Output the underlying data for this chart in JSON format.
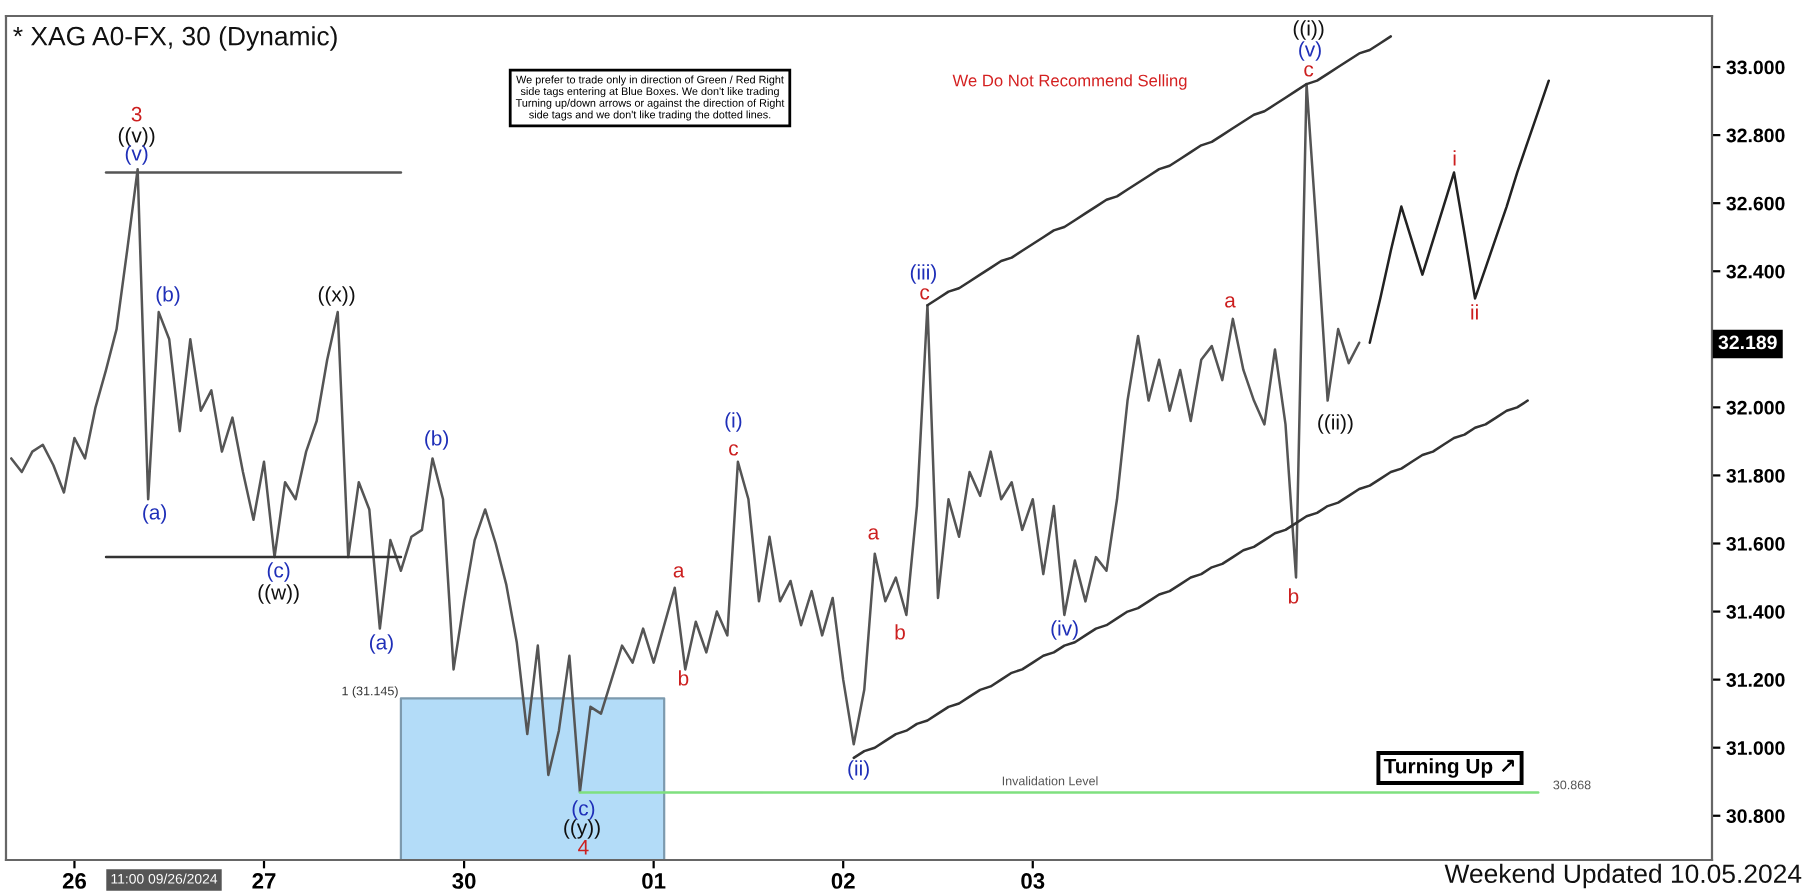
{
  "chart_data": {
    "type": "line",
    "title": "* XAG A0-FX, 30 (Dynamic)",
    "categories": [
      null,
      null,
      null,
      null,
      null,
      null,
      "26",
      null,
      null,
      null,
      null,
      null,
      null,
      null,
      null,
      null,
      null,
      null,
      null,
      null,
      null,
      null,
      null,
      null,
      "27",
      null,
      null,
      null,
      null,
      null,
      null,
      null,
      null,
      null,
      null,
      null,
      null,
      null,
      null,
      null,
      null,
      null,
      null,
      "30",
      null,
      null,
      null,
      null,
      null,
      null,
      null,
      null,
      null,
      null,
      null,
      null,
      null,
      null,
      null,
      null,
      null,
      "01",
      null,
      null,
      null,
      null,
      null,
      null,
      null,
      null,
      null,
      null,
      null,
      null,
      null,
      null,
      null,
      null,
      null,
      "02",
      null,
      null,
      null,
      null,
      null,
      null,
      null,
      null,
      null,
      null,
      null,
      null,
      null,
      null,
      null,
      null,
      null,
      "03",
      null,
      null,
      null,
      null,
      null,
      null,
      null,
      null,
      null,
      null,
      null,
      null,
      null,
      null,
      null,
      null,
      null,
      null,
      null,
      null,
      null,
      null,
      null,
      null,
      null,
      null,
      null,
      null,
      null,
      null,
      null,
      null,
      null,
      null,
      null,
      null,
      null,
      null,
      null,
      null,
      null,
      null,
      null,
      null,
      null,
      null,
      null,
      null,
      null,
      null,
      null,
      null,
      null,
      null,
      null,
      null,
      null,
      null,
      null,
      null,
      null,
      null,
      null,
      null
    ],
    "ylim": [
      30.67,
      33.15
    ],
    "yticks": [
      {
        "value": 30.8,
        "label": "30.800"
      },
      {
        "value": 31.0,
        "label": "31.000"
      },
      {
        "value": 31.2,
        "label": "31.200"
      },
      {
        "value": 31.4,
        "label": "31.400"
      },
      {
        "value": 31.6,
        "label": "31.600"
      },
      {
        "value": 31.8,
        "label": "31.800"
      },
      {
        "value": 32.0,
        "label": "32.000"
      },
      {
        "value": 32.4,
        "label": "32.400"
      },
      {
        "value": 32.6,
        "label": "32.600"
      },
      {
        "value": 32.8,
        "label": "32.800"
      },
      {
        "value": 33.0,
        "label": "33.000"
      }
    ],
    "grid": false,
    "series": [
      {
        "type": "area",
        "color": "#b3dcf8",
        "values": [
          null,
          null,
          null,
          null,
          null,
          null,
          null,
          null,
          null,
          null,
          null,
          null,
          null,
          null,
          null,
          null,
          null,
          null,
          null,
          null,
          null,
          null,
          null,
          null,
          null,
          null,
          null,
          null,
          null,
          null,
          null,
          null,
          null,
          null,
          null,
          null,
          null,
          31.145,
          31.145,
          31.145,
          31.145,
          31.145,
          31.145,
          31.145,
          31.145,
          31.145,
          31.145,
          31.145,
          31.145,
          31.145,
          31.145,
          31.145,
          31.145,
          31.145,
          31.145,
          31.145,
          31.145,
          31.145,
          31.145,
          31.145,
          31.145,
          31.145,
          31.145,
          null,
          null,
          null,
          null,
          null,
          null,
          null,
          null,
          null,
          null,
          null,
          null,
          null,
          null,
          null,
          null,
          null,
          null,
          null,
          null,
          null,
          null,
          null,
          null,
          null,
          null,
          null,
          null,
          null,
          null,
          null,
          null,
          null,
          null,
          null,
          null,
          null,
          null,
          null,
          null,
          null,
          null,
          null,
          null,
          null,
          null,
          null,
          null,
          null,
          null,
          null,
          null,
          null,
          null,
          null,
          null,
          null,
          null,
          null,
          null,
          null,
          null,
          null,
          null,
          null,
          null,
          null,
          null,
          null,
          null,
          null,
          null,
          null,
          null,
          null,
          null,
          null,
          null,
          null,
          null,
          null,
          null,
          null,
          null,
          null,
          null,
          null,
          null,
          null,
          null,
          null,
          null,
          null,
          null,
          null,
          null,
          null,
          null,
          null
        ]
      },
      {
        "color": "#555555",
        "values": [
          31.85,
          31.81,
          31.87,
          31.89,
          31.83,
          31.75,
          31.91,
          31.85,
          32.0,
          32.11,
          32.23,
          32.46,
          32.7,
          31.73,
          32.28,
          32.2,
          31.93,
          32.2,
          31.99,
          32.05,
          31.87,
          31.97,
          31.81,
          31.67,
          31.84,
          31.56,
          31.78,
          31.73,
          31.87,
          31.96,
          32.14,
          32.28,
          31.56,
          31.78,
          31.7,
          31.35,
          31.61,
          31.52,
          31.62,
          31.64,
          31.85,
          31.73,
          31.23,
          31.43,
          31.61,
          31.7,
          31.6,
          31.48,
          31.31,
          31.04,
          31.3,
          30.92,
          31.05,
          31.27,
          30.87,
          31.12,
          31.1,
          31.2,
          31.3,
          31.25,
          31.35,
          31.25,
          31.36,
          31.47,
          31.23,
          31.37,
          31.28,
          31.4,
          31.33,
          31.84,
          31.73,
          31.43,
          31.62,
          31.43,
          31.49,
          31.36,
          31.46,
          31.33,
          31.44,
          31.2,
          31.01,
          31.17,
          31.57,
          31.43,
          31.5,
          31.39,
          31.71,
          32.3,
          31.44,
          31.73,
          31.62,
          31.81,
          31.74,
          31.87,
          31.73,
          31.78,
          31.64,
          31.73,
          31.51,
          31.71,
          31.39,
          31.55,
          31.43,
          31.56,
          31.52,
          31.73,
          32.02,
          32.21,
          32.02,
          32.14,
          31.99,
          32.11,
          31.96,
          32.14,
          32.18,
          32.08,
          32.26,
          32.11,
          32.02,
          31.95,
          32.17,
          31.95,
          31.5,
          32.95,
          32.5,
          32.02,
          32.23,
          32.13,
          32.19,
          null,
          null,
          null,
          null,
          null,
          null,
          null,
          null,
          null,
          null,
          null,
          null,
          null,
          null,
          null,
          null,
          null,
          null,
          null,
          null,
          null,
          null,
          null,
          null,
          null,
          null,
          null,
          null,
          null,
          null,
          null,
          null,
          null
        ]
      },
      {
        "color": "#222222",
        "values": [
          null,
          null,
          null,
          null,
          null,
          null,
          null,
          null,
          null,
          null,
          null,
          null,
          null,
          null,
          null,
          null,
          null,
          null,
          null,
          null,
          null,
          null,
          null,
          null,
          null,
          null,
          null,
          null,
          null,
          null,
          null,
          null,
          null,
          null,
          null,
          null,
          null,
          null,
          null,
          null,
          null,
          null,
          null,
          null,
          null,
          null,
          null,
          null,
          null,
          null,
          null,
          null,
          null,
          null,
          null,
          null,
          null,
          null,
          null,
          null,
          null,
          null,
          null,
          null,
          null,
          null,
          null,
          null,
          null,
          null,
          null,
          null,
          null,
          null,
          null,
          null,
          null,
          null,
          null,
          null,
          null,
          null,
          null,
          null,
          null,
          null,
          null,
          null,
          null,
          null,
          null,
          null,
          null,
          null,
          null,
          null,
          null,
          null,
          null,
          null,
          null,
          null,
          null,
          null,
          null,
          null,
          null,
          null,
          null,
          null,
          null,
          null,
          null,
          null,
          null,
          null,
          null,
          null,
          null,
          null,
          null,
          null,
          null,
          null,
          null,
          null,
          null,
          null,
          null,
          32.19,
          32.32,
          32.46,
          32.59,
          32.49,
          32.39,
          32.49,
          32.59,
          32.69,
          32.51,
          32.32,
          32.41,
          32.5,
          32.59,
          32.69,
          32.78,
          32.87,
          32.96,
          null,
          null,
          null,
          null,
          null,
          null,
          null,
          null,
          null,
          null,
          null,
          null,
          null,
          null,
          null
        ]
      },
      {
        "color": "#333333",
        "values": [
          null,
          null,
          null,
          null,
          null,
          null,
          null,
          null,
          null,
          null,
          null,
          null,
          null,
          null,
          null,
          null,
          null,
          null,
          null,
          null,
          null,
          null,
          null,
          null,
          null,
          null,
          null,
          null,
          null,
          null,
          null,
          null,
          null,
          null,
          null,
          null,
          null,
          null,
          null,
          null,
          null,
          null,
          null,
          null,
          null,
          null,
          null,
          null,
          null,
          null,
          null,
          null,
          null,
          null,
          null,
          null,
          null,
          null,
          null,
          null,
          null,
          null,
          null,
          null,
          null,
          null,
          null,
          null,
          null,
          null,
          null,
          null,
          null,
          null,
          null,
          null,
          null,
          null,
          null,
          null,
          null,
          null,
          null,
          null,
          null,
          null,
          null,
          32.3,
          32.32,
          32.34,
          32.35,
          32.37,
          32.39,
          32.41,
          32.43,
          32.44,
          32.46,
          32.48,
          32.5,
          32.52,
          32.53,
          32.55,
          32.57,
          32.59,
          32.61,
          32.62,
          32.64,
          32.66,
          32.68,
          32.7,
          32.71,
          32.73,
          32.75,
          32.77,
          32.78,
          32.8,
          32.82,
          32.84,
          32.86,
          32.87,
          32.89,
          32.91,
          32.93,
          32.95,
          32.96,
          32.98,
          33.0,
          33.02,
          33.04,
          33.05,
          33.07,
          33.09,
          null,
          null,
          null,
          null,
          null,
          null,
          null,
          null,
          null,
          null,
          null,
          null,
          null,
          null,
          null,
          null,
          null,
          null,
          null,
          null,
          null,
          null,
          null,
          null,
          null,
          null,
          null,
          null,
          null,
          null
        ]
      },
      {
        "color": "#333333",
        "values": [
          null,
          null,
          null,
          null,
          null,
          null,
          null,
          null,
          null,
          null,
          null,
          null,
          null,
          null,
          null,
          null,
          null,
          null,
          null,
          null,
          null,
          null,
          null,
          null,
          null,
          null,
          null,
          null,
          null,
          null,
          null,
          null,
          null,
          null,
          null,
          null,
          null,
          null,
          null,
          null,
          null,
          null,
          null,
          null,
          null,
          null,
          null,
          null,
          null,
          null,
          null,
          null,
          null,
          null,
          null,
          null,
          null,
          null,
          null,
          null,
          null,
          null,
          null,
          null,
          null,
          null,
          null,
          null,
          null,
          null,
          null,
          null,
          null,
          null,
          null,
          null,
          null,
          null,
          null,
          null,
          30.97,
          30.99,
          31.0,
          31.02,
          31.04,
          31.05,
          31.07,
          31.08,
          31.1,
          31.12,
          31.13,
          31.15,
          31.17,
          31.18,
          31.2,
          31.22,
          31.23,
          31.25,
          31.27,
          31.28,
          31.3,
          31.31,
          31.33,
          31.35,
          31.36,
          31.38,
          31.4,
          31.41,
          31.43,
          31.45,
          31.46,
          31.48,
          31.5,
          31.51,
          31.53,
          31.54,
          31.56,
          31.58,
          31.59,
          31.61,
          31.63,
          31.64,
          31.66,
          31.68,
          31.69,
          31.71,
          31.72,
          31.74,
          31.76,
          31.77,
          31.79,
          31.81,
          31.82,
          31.84,
          31.86,
          31.87,
          31.89,
          31.91,
          31.92,
          31.94,
          31.95,
          31.97,
          31.99,
          32.0,
          32.02,
          null,
          null,
          null,
          null,
          null,
          null,
          null,
          null,
          null,
          null,
          null,
          null,
          null,
          null,
          null,
          null,
          null
        ]
      },
      {
        "color": "#555555",
        "values": [
          null,
          null,
          null,
          null,
          null,
          null,
          null,
          null,
          null,
          32.69,
          32.69,
          32.69,
          32.69,
          32.69,
          32.69,
          32.69,
          32.69,
          32.69,
          32.69,
          32.69,
          32.69,
          32.69,
          32.69,
          32.69,
          32.69,
          32.69,
          32.69,
          32.69,
          32.69,
          32.69,
          32.69,
          32.69,
          32.69,
          32.69,
          32.69,
          32.69,
          32.69,
          32.69,
          null,
          null,
          null,
          null,
          null,
          null,
          null,
          null,
          null,
          null,
          null,
          null,
          null,
          null,
          null,
          null,
          null,
          null,
          null,
          null,
          null,
          null,
          null,
          null,
          null,
          null,
          null,
          null,
          null,
          null,
          null,
          null,
          null,
          null,
          null,
          null,
          null,
          null,
          null,
          null,
          null,
          null,
          null,
          null,
          null,
          null,
          null,
          null,
          null,
          null,
          null,
          null,
          null,
          null,
          null,
          null,
          null,
          null,
          null,
          null,
          null,
          null,
          null,
          null,
          null,
          null,
          null,
          null,
          null,
          null,
          null,
          null,
          null,
          null,
          null,
          null,
          null,
          null,
          null,
          null,
          null,
          null,
          null,
          null,
          null,
          null,
          null,
          null,
          null,
          null,
          null,
          null,
          null,
          null,
          null,
          null,
          null,
          null,
          null,
          null,
          null,
          null,
          null,
          null,
          null,
          null,
          null,
          null,
          null,
          null,
          null,
          null,
          null,
          null,
          null,
          null,
          null,
          null,
          null,
          null,
          null,
          null,
          null,
          null
        ]
      },
      {
        "color": "#333333",
        "values": [
          null,
          null,
          null,
          null,
          null,
          null,
          null,
          null,
          null,
          31.56,
          31.56,
          31.56,
          31.56,
          31.56,
          31.56,
          31.56,
          31.56,
          31.56,
          31.56,
          31.56,
          31.56,
          31.56,
          31.56,
          31.56,
          31.56,
          31.56,
          31.56,
          31.56,
          31.56,
          31.56,
          31.56,
          31.56,
          31.56,
          31.56,
          31.56,
          31.56,
          31.56,
          31.56,
          null,
          null,
          null,
          null,
          null,
          null,
          null,
          null,
          null,
          null,
          null,
          null,
          null,
          null,
          null,
          null,
          null,
          null,
          null,
          null,
          null,
          null,
          null,
          null,
          null,
          null,
          null,
          null,
          null,
          null,
          null,
          null,
          null,
          null,
          null,
          null,
          null,
          null,
          null,
          null,
          null,
          null,
          null,
          null,
          null,
          null,
          null,
          null,
          null,
          null,
          null,
          null,
          null,
          null,
          null,
          null,
          null,
          null,
          null,
          null,
          null,
          null,
          null,
          null,
          null,
          null,
          null,
          null,
          null,
          null,
          null,
          null,
          null,
          null,
          null,
          null,
          null,
          null,
          null,
          null,
          null,
          null,
          null,
          null,
          null,
          null,
          null,
          null,
          null,
          null,
          null,
          null,
          null,
          null,
          null,
          null,
          null,
          null,
          null,
          null,
          null,
          null,
          null,
          null,
          null,
          null,
          null,
          null,
          null,
          null,
          null,
          null,
          null,
          null,
          null,
          null,
          null,
          null,
          null,
          null,
          null,
          null,
          null,
          null
        ]
      },
      {
        "color": "#7fe07f",
        "values": [
          null,
          null,
          null,
          null,
          null,
          null,
          null,
          null,
          null,
          null,
          null,
          null,
          null,
          null,
          null,
          null,
          null,
          null,
          null,
          null,
          null,
          null,
          null,
          null,
          null,
          null,
          null,
          null,
          null,
          null,
          null,
          null,
          null,
          null,
          null,
          null,
          null,
          null,
          null,
          null,
          null,
          null,
          null,
          null,
          null,
          null,
          null,
          null,
          null,
          null,
          null,
          null,
          null,
          null,
          30.868,
          30.868,
          30.868,
          30.868,
          30.868,
          30.868,
          30.868,
          30.868,
          30.868,
          30.868,
          30.868,
          30.868,
          30.868,
          30.868,
          30.868,
          30.868,
          30.868,
          30.868,
          30.868,
          30.868,
          30.868,
          30.868,
          30.868,
          30.868,
          30.868,
          30.868,
          30.868,
          30.868,
          30.868,
          30.868,
          30.868,
          30.868,
          30.868,
          30.868,
          30.868,
          30.868,
          30.868,
          30.868,
          30.868,
          30.868,
          30.868,
          30.868,
          30.868,
          30.868,
          30.868,
          30.868,
          30.868,
          30.868,
          30.868,
          30.868,
          30.868,
          30.868,
          30.868,
          30.868,
          30.868,
          30.868,
          30.868,
          30.868,
          30.868,
          30.868,
          30.868,
          30.868,
          30.868,
          30.868,
          30.868,
          30.868,
          30.868,
          30.868,
          30.868,
          30.868,
          30.868,
          30.868,
          30.868,
          30.868,
          30.868,
          30.868,
          30.868,
          30.868,
          30.868,
          30.868,
          30.868,
          30.868,
          30.868,
          30.868,
          30.868,
          30.868,
          30.868,
          30.868,
          30.868,
          30.868,
          30.868,
          30.868,
          null,
          null,
          null,
          null,
          null,
          null,
          null,
          null,
          null,
          null,
          null,
          null,
          null,
          null,
          null,
          null
        ]
      }
    ],
    "annotations": [
      "We prefer to trade only in direction of Green / Red Right\nside tags entering at Blue Boxes. We don't like trading\nTurning up/down arrows or against the direction of Right\nside tags and we don't like trading the dotted lines.",
      "We Do Not Recommend Selling",
      "Turning Up ↗",
      "Weekend Updated 10.05.2024",
      "11:00 09/26/2024",
      "32.189",
      "1 (31.145)",
      "Invalidation Level",
      "30.868",
      "3",
      "((v))",
      "(v)",
      "(b)",
      "(a)",
      "((x))",
      "(c)",
      "((w))",
      "(b)",
      "(a)",
      "(c)",
      "((y))",
      "4",
      "a",
      "b",
      "(i)",
      "c",
      "(ii)",
      "a",
      "b",
      "(iii)",
      "c",
      "(iv)",
      "a",
      "b",
      "((i))",
      "(v)",
      "c",
      "((ii))",
      "i",
      "ii"
    ]
  }
}
